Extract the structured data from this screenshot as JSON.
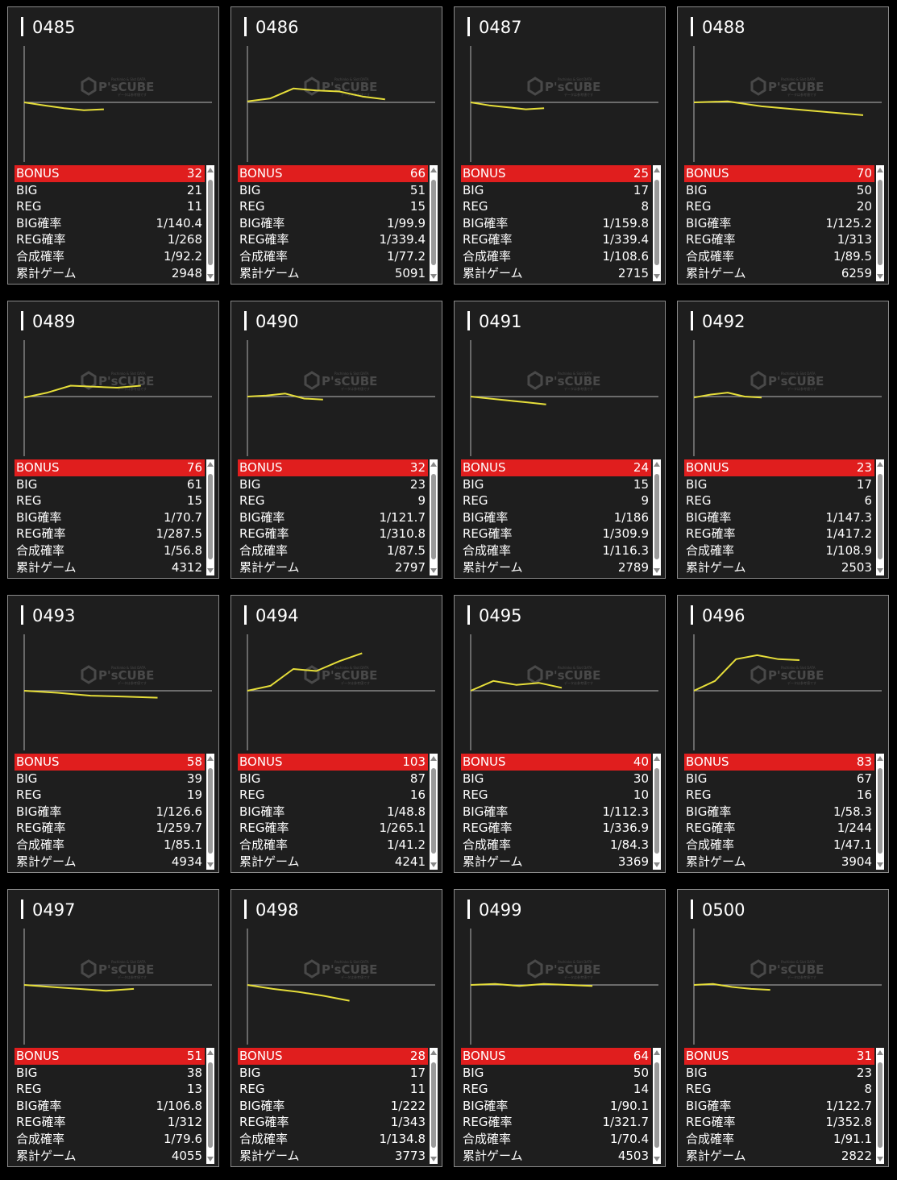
{
  "watermark": {
    "brand": "P'sCUBE",
    "tag_top": "Pachinko & Slot DATA",
    "tag_bottom": "データは参考値です"
  },
  "colors": {
    "graph_line": "#e6de3a",
    "axis": "#9a9a9a",
    "bonus_bg": "#e01e1e",
    "card_bg": "#1e1e1e"
  },
  "labels": {
    "bonus": "BONUS",
    "big": "BIG",
    "reg": "REG",
    "big_rate": "BIG確率",
    "reg_rate": "REG確率",
    "total_rate": "合成確率",
    "games": "累計ゲーム"
  },
  "machines": [
    {
      "id": "0485",
      "bonus": "32",
      "big": "21",
      "reg": "11",
      "big_rate": "1/140.4",
      "reg_rate": "1/268",
      "total_rate": "1/92.2",
      "games": "2948"
    },
    {
      "id": "0486",
      "bonus": "66",
      "big": "51",
      "reg": "15",
      "big_rate": "1/99.9",
      "reg_rate": "1/339.4",
      "total_rate": "1/77.2",
      "games": "5091"
    },
    {
      "id": "0487",
      "bonus": "25",
      "big": "17",
      "reg": "8",
      "big_rate": "1/159.8",
      "reg_rate": "1/339.4",
      "total_rate": "1/108.6",
      "games": "2715"
    },
    {
      "id": "0488",
      "bonus": "70",
      "big": "50",
      "reg": "20",
      "big_rate": "1/125.2",
      "reg_rate": "1/313",
      "total_rate": "1/89.5",
      "games": "6259"
    },
    {
      "id": "0489",
      "bonus": "76",
      "big": "61",
      "reg": "15",
      "big_rate": "1/70.7",
      "reg_rate": "1/287.5",
      "total_rate": "1/56.8",
      "games": "4312"
    },
    {
      "id": "0490",
      "bonus": "32",
      "big": "23",
      "reg": "9",
      "big_rate": "1/121.7",
      "reg_rate": "1/310.8",
      "total_rate": "1/87.5",
      "games": "2797"
    },
    {
      "id": "0491",
      "bonus": "24",
      "big": "15",
      "reg": "9",
      "big_rate": "1/186",
      "reg_rate": "1/309.9",
      "total_rate": "1/116.3",
      "games": "2789"
    },
    {
      "id": "0492",
      "bonus": "23",
      "big": "17",
      "reg": "6",
      "big_rate": "1/147.3",
      "reg_rate": "1/417.2",
      "total_rate": "1/108.9",
      "games": "2503"
    },
    {
      "id": "0493",
      "bonus": "58",
      "big": "39",
      "reg": "19",
      "big_rate": "1/126.6",
      "reg_rate": "1/259.7",
      "total_rate": "1/85.1",
      "games": "4934"
    },
    {
      "id": "0494",
      "bonus": "103",
      "big": "87",
      "reg": "16",
      "big_rate": "1/48.8",
      "reg_rate": "1/265.1",
      "total_rate": "1/41.2",
      "games": "4241"
    },
    {
      "id": "0495",
      "bonus": "40",
      "big": "30",
      "reg": "10",
      "big_rate": "1/112.3",
      "reg_rate": "1/336.9",
      "total_rate": "1/84.3",
      "games": "3369"
    },
    {
      "id": "0496",
      "bonus": "83",
      "big": "67",
      "reg": "16",
      "big_rate": "1/58.3",
      "reg_rate": "1/244",
      "total_rate": "1/47.1",
      "games": "3904"
    },
    {
      "id": "0497",
      "bonus": "51",
      "big": "38",
      "reg": "13",
      "big_rate": "1/106.8",
      "reg_rate": "1/312",
      "total_rate": "1/79.6",
      "games": "4055"
    },
    {
      "id": "0498",
      "bonus": "28",
      "big": "17",
      "reg": "11",
      "big_rate": "1/222",
      "reg_rate": "1/343",
      "total_rate": "1/134.8",
      "games": "3773"
    },
    {
      "id": "0499",
      "bonus": "64",
      "big": "50",
      "reg": "14",
      "big_rate": "1/90.1",
      "reg_rate": "1/321.7",
      "total_rate": "1/70.4",
      "games": "4503"
    },
    {
      "id": "0500",
      "bonus": "31",
      "big": "23",
      "reg": "8",
      "big_rate": "1/122.7",
      "reg_rate": "1/352.8",
      "total_rate": "1/91.1",
      "games": "2822"
    }
  ],
  "chart_data": [
    {
      "type": "line",
      "id": "0485",
      "x": [
        0,
        737,
        1474,
        2211,
        2948
      ],
      "y": [
        0,
        -150,
        -300,
        -400,
        -350
      ]
    },
    {
      "type": "line",
      "id": "0486",
      "x": [
        0,
        850,
        1700,
        2550,
        3400,
        4250,
        5091
      ],
      "y": [
        50,
        200,
        700,
        600,
        550,
        300,
        150
      ]
    },
    {
      "type": "line",
      "id": "0487",
      "x": [
        0,
        680,
        1360,
        2040,
        2715
      ],
      "y": [
        0,
        -150,
        -250,
        -350,
        -300
      ]
    },
    {
      "type": "line",
      "id": "0488",
      "x": [
        0,
        1250,
        2500,
        3750,
        5000,
        6259
      ],
      "y": [
        0,
        50,
        -200,
        -350,
        -500,
        -650
      ]
    },
    {
      "type": "line",
      "id": "0489",
      "x": [
        0,
        860,
        1720,
        2580,
        3440,
        4312
      ],
      "y": [
        -50,
        200,
        550,
        500,
        450,
        550
      ]
    },
    {
      "type": "line",
      "id": "0490",
      "x": [
        0,
        700,
        1400,
        2100,
        2797
      ],
      "y": [
        0,
        50,
        150,
        -100,
        -150
      ]
    },
    {
      "type": "line",
      "id": "0491",
      "x": [
        0,
        700,
        1400,
        2100,
        2789
      ],
      "y": [
        0,
        -100,
        -200,
        -300,
        -400
      ]
    },
    {
      "type": "line",
      "id": "0492",
      "x": [
        0,
        625,
        1250,
        1875,
        2503
      ],
      "y": [
        -50,
        100,
        200,
        0,
        -50
      ]
    },
    {
      "type": "line",
      "id": "0493",
      "x": [
        0,
        1230,
        2460,
        3690,
        4934
      ],
      "y": [
        0,
        -100,
        -250,
        -300,
        -350
      ]
    },
    {
      "type": "line",
      "id": "0494",
      "x": [
        0,
        850,
        1700,
        2550,
        3400,
        4241
      ],
      "y": [
        0,
        250,
        1100,
        1000,
        1500,
        1900
      ]
    },
    {
      "type": "line",
      "id": "0495",
      "x": [
        0,
        840,
        1680,
        2520,
        3369
      ],
      "y": [
        0,
        500,
        300,
        400,
        150
      ]
    },
    {
      "type": "line",
      "id": "0496",
      "x": [
        0,
        780,
        1560,
        2340,
        3120,
        3904
      ],
      "y": [
        0,
        500,
        1600,
        1800,
        1600,
        1550
      ]
    },
    {
      "type": "line",
      "id": "0497",
      "x": [
        0,
        1010,
        2020,
        3030,
        4055
      ],
      "y": [
        0,
        -100,
        -200,
        -300,
        -200
      ]
    },
    {
      "type": "line",
      "id": "0498",
      "x": [
        0,
        940,
        1880,
        2820,
        3773
      ],
      "y": [
        0,
        -200,
        -350,
        -550,
        -800
      ]
    },
    {
      "type": "line",
      "id": "0499",
      "x": [
        0,
        900,
        1800,
        2700,
        3600,
        4503
      ],
      "y": [
        0,
        50,
        -50,
        50,
        0,
        -50
      ]
    },
    {
      "type": "line",
      "id": "0500",
      "x": [
        0,
        705,
        1410,
        2115,
        2822
      ],
      "y": [
        0,
        50,
        -100,
        -200,
        -250
      ]
    }
  ]
}
